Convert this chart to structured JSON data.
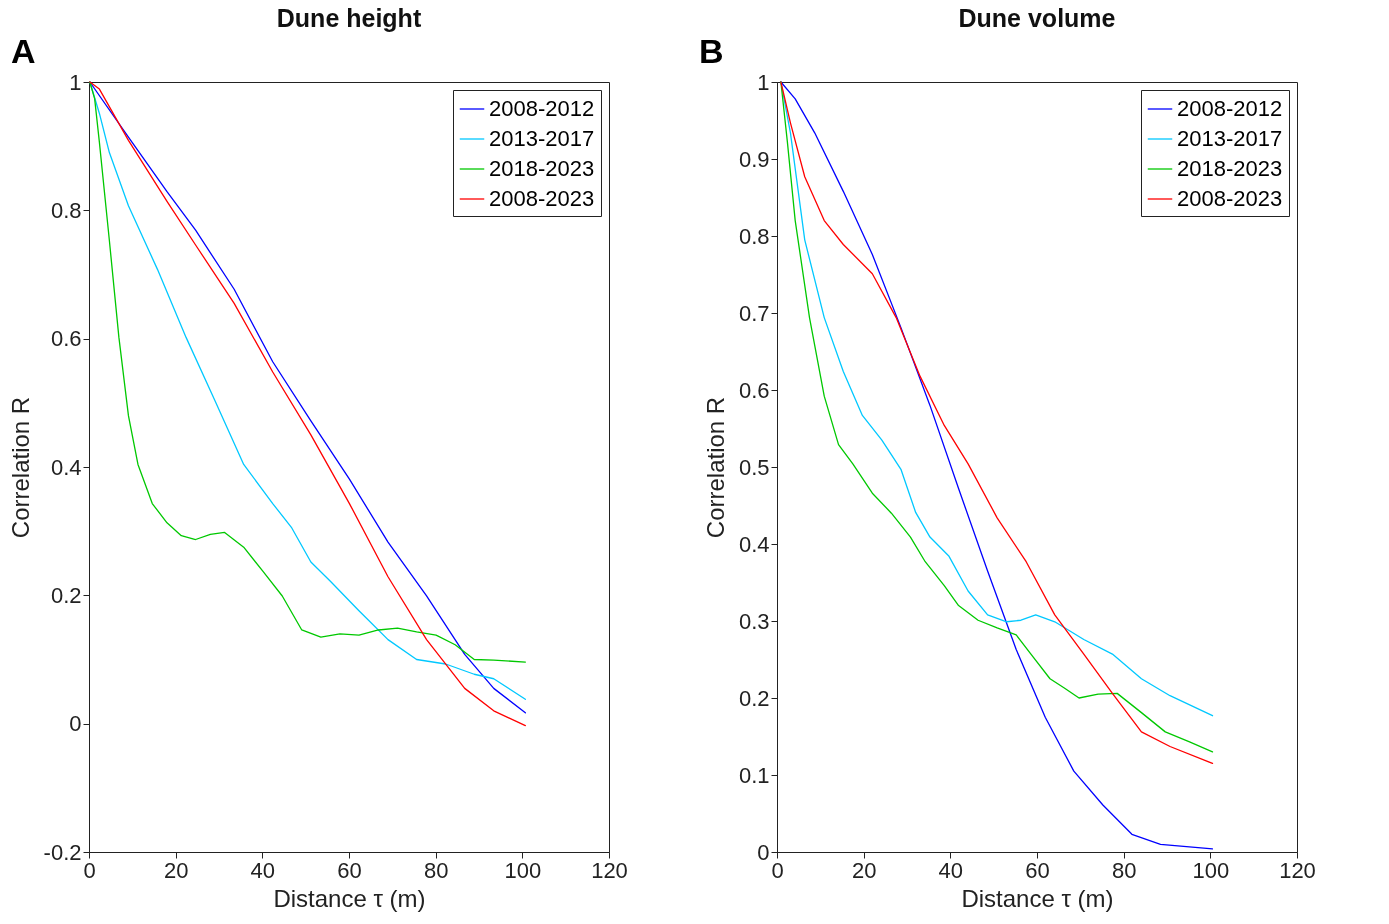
{
  "chart_data": [
    {
      "type": "line",
      "title": "Dune height",
      "xlabel": "Distance τ (m)",
      "ylabel": "Correlation R",
      "annotations": [
        "A"
      ],
      "legend": "top right",
      "grid": false,
      "xlim": [
        0,
        120
      ],
      "xticks": [
        0,
        20,
        40,
        60,
        80,
        100,
        120
      ],
      "ylim": [
        -0.2,
        1
      ],
      "yticks": [
        -0.2,
        0,
        0.2,
        0.4,
        0.6,
        0.8,
        1
      ],
      "series": [
        {
          "name": "2008-2012",
          "color": "#0000ff",
          "x": [
            0.2,
            9.1,
            18,
            24.6,
            33.5,
            42.4,
            51.2,
            60.1,
            69,
            77.9,
            86.7,
            93.4,
            100.7
          ],
          "values": [
            1,
            0.914,
            0.829,
            0.769,
            0.677,
            0.564,
            0.472,
            0.381,
            0.283,
            0.199,
            0.108,
            0.055,
            0.017
          ]
        },
        {
          "name": "2013-2017",
          "color": "#00c8ff",
          "x": [
            0.2,
            2.4,
            4.7,
            9.1,
            15.8,
            22.4,
            29.1,
            35.7,
            42.4,
            46.8,
            51.2,
            55.7,
            62.3,
            69,
            75.6,
            82.3,
            88.9,
            93.4,
            100.7
          ],
          "values": [
            1,
            0.951,
            0.89,
            0.807,
            0.708,
            0.602,
            0.503,
            0.404,
            0.343,
            0.305,
            0.252,
            0.222,
            0.176,
            0.131,
            0.1,
            0.093,
            0.077,
            0.07,
            0.038
          ]
        },
        {
          "name": "2018-2023",
          "color": "#00c800",
          "x": [
            0.2,
            1.3,
            2.4,
            4.7,
            6.9,
            9.1,
            11.3,
            14.6,
            18,
            21.3,
            24.6,
            28,
            31.3,
            35.7,
            40.2,
            44.6,
            49.1,
            53.5,
            57.9,
            62.3,
            66.8,
            71.2,
            75.6,
            80.1,
            84.5,
            88.9,
            93.4,
            100.7
          ],
          "values": [
            1,
            0.974,
            0.906,
            0.753,
            0.602,
            0.48,
            0.404,
            0.343,
            0.313,
            0.293,
            0.287,
            0.295,
            0.298,
            0.275,
            0.237,
            0.199,
            0.146,
            0.135,
            0.14,
            0.138,
            0.146,
            0.149,
            0.143,
            0.138,
            0.123,
            0.1,
            0.099,
            0.096
          ]
        },
        {
          "name": "2008-2023",
          "color": "#ff0000",
          "x": [
            0.2,
            2.4,
            9.1,
            18,
            24.6,
            33.5,
            42.4,
            51.2,
            60.1,
            69,
            77.9,
            86.7,
            93.4,
            100.7
          ],
          "values": [
            1,
            0.989,
            0.909,
            0.814,
            0.746,
            0.655,
            0.548,
            0.45,
            0.343,
            0.229,
            0.131,
            0.055,
            0.02,
            -0.003
          ]
        }
      ]
    },
    {
      "type": "line",
      "title": "Dune volume",
      "xlabel": "Distance τ (m)",
      "ylabel": "Correlation R",
      "annotations": [
        "B"
      ],
      "legend": "top right",
      "grid": false,
      "xlim": [
        0,
        120
      ],
      "xticks": [
        0,
        20,
        40,
        60,
        80,
        100,
        120
      ],
      "ylim": [
        0,
        1
      ],
      "yticks": [
        0,
        0.1,
        0.2,
        0.3,
        0.4,
        0.5,
        0.6,
        0.7,
        0.8,
        0.9,
        1
      ],
      "series": [
        {
          "name": "2008-2012",
          "color": "#0000ff",
          "x": [
            0.9,
            4.2,
            8.7,
            15.3,
            22,
            28.6,
            35.3,
            41.9,
            48.6,
            55.2,
            61.9,
            68.5,
            75.2,
            81.9,
            88.5,
            100.5
          ],
          "values": [
            1,
            0.978,
            0.934,
            0.858,
            0.776,
            0.681,
            0.58,
            0.472,
            0.365,
            0.263,
            0.175,
            0.105,
            0.061,
            0.023,
            0.01,
            0.004
          ]
        },
        {
          "name": "2013-2017",
          "color": "#00c8ff",
          "x": [
            0.9,
            3.1,
            6.4,
            10.9,
            15.3,
            19.7,
            24.2,
            28.6,
            32,
            35.3,
            39.7,
            44.1,
            48.6,
            53,
            56.3,
            59.7,
            64.1,
            70.8,
            77.4,
            84.1,
            90.7,
            100.5
          ],
          "values": [
            1,
            0.934,
            0.795,
            0.694,
            0.624,
            0.567,
            0.535,
            0.497,
            0.441,
            0.409,
            0.384,
            0.339,
            0.308,
            0.299,
            0.301,
            0.308,
            0.299,
            0.276,
            0.257,
            0.225,
            0.203,
            0.177
          ]
        },
        {
          "name": "2018-2023",
          "color": "#00c800",
          "x": [
            0.9,
            2.4,
            4.2,
            7.5,
            10.9,
            14.2,
            17.5,
            22,
            26.4,
            30.8,
            34.2,
            38.6,
            41.9,
            46.4,
            50.8,
            55.2,
            58.6,
            63,
            66.3,
            69.7,
            74.1,
            78.5,
            84.1,
            89.6,
            95.2,
            100.5
          ],
          "values": [
            1,
            0.922,
            0.82,
            0.694,
            0.592,
            0.529,
            0.504,
            0.466,
            0.44,
            0.409,
            0.377,
            0.346,
            0.32,
            0.301,
            0.291,
            0.282,
            0.257,
            0.225,
            0.213,
            0.2,
            0.205,
            0.206,
            0.181,
            0.156,
            0.143,
            0.13
          ]
        },
        {
          "name": "2008-2023",
          "color": "#ff0000",
          "x": [
            0.9,
            3.1,
            6.4,
            10.9,
            15.3,
            22,
            27.5,
            33,
            38.6,
            44.1,
            50.8,
            57.5,
            64.1,
            70.8,
            77.4,
            84.1,
            90.7,
            100.5
          ],
          "values": [
            1,
            0.947,
            0.877,
            0.82,
            0.789,
            0.751,
            0.694,
            0.618,
            0.554,
            0.504,
            0.434,
            0.377,
            0.308,
            0.257,
            0.206,
            0.156,
            0.137,
            0.115
          ]
        }
      ]
    }
  ]
}
